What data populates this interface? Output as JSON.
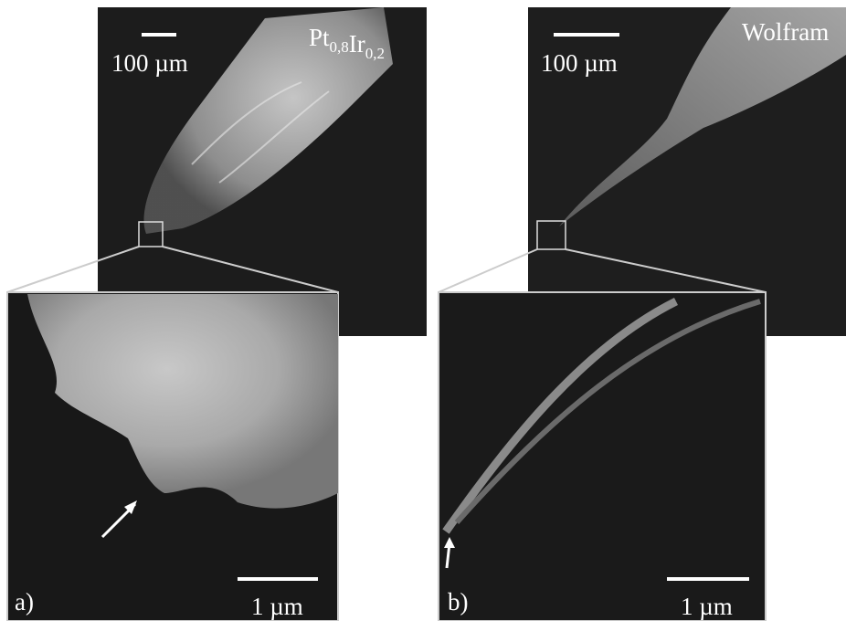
{
  "panels": [
    {
      "overview_scale": "100 µm",
      "material": [
        {
          "text": "Pt",
          "sub": "0,8"
        },
        {
          "text": "Ir",
          "sub": "0,2"
        }
      ],
      "label": "a)",
      "zoom_scale": "1 µm"
    },
    {
      "overview_scale": "100 µm",
      "material": [
        {
          "text": "Wolfram"
        }
      ],
      "label": "b)",
      "zoom_scale": "1 µm"
    }
  ]
}
